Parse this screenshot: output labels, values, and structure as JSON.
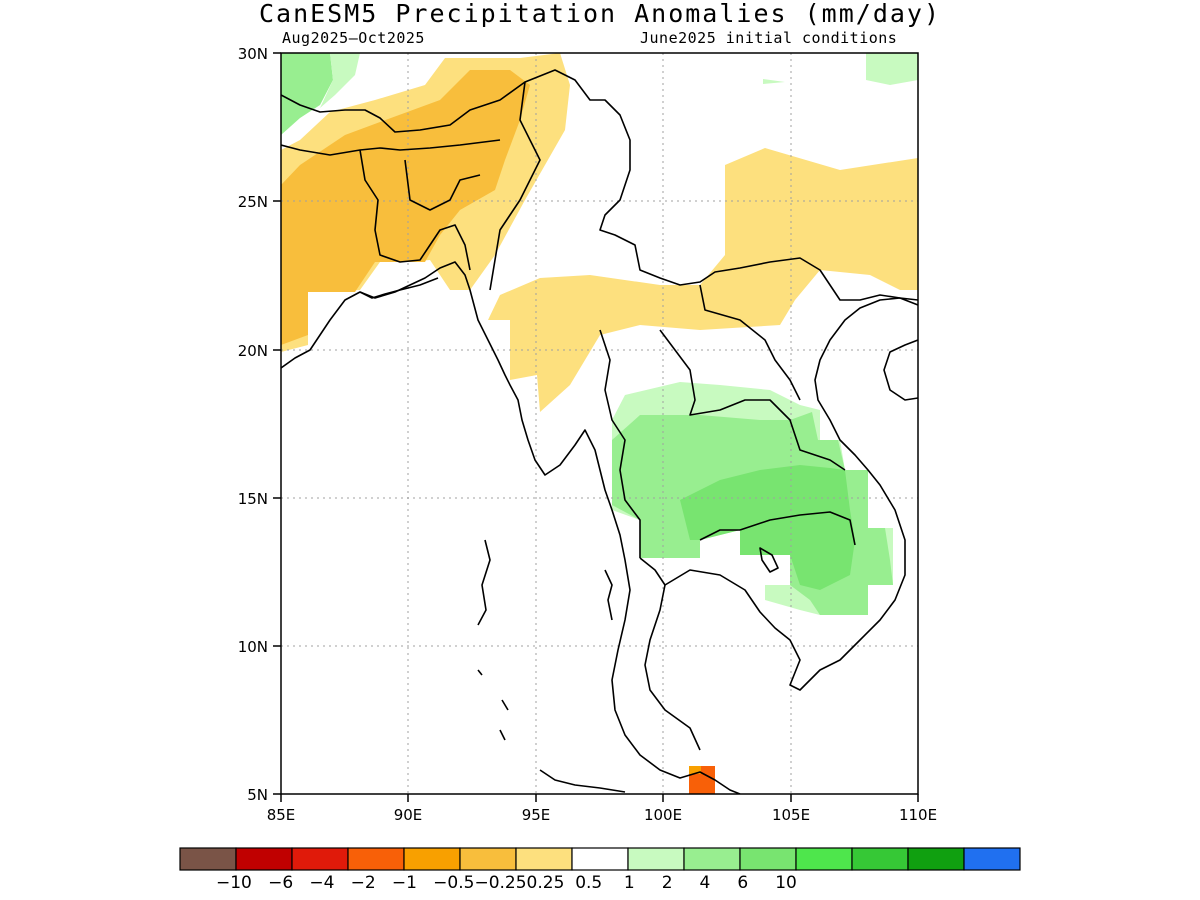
{
  "title": "CanESM5 Precipitation Anomalies (mm/day)",
  "subtitle_left": "Aug2025–Oct2025",
  "subtitle_right": "June2025 initial conditions",
  "map": {
    "lon_range": [
      85,
      110
    ],
    "lat_range": [
      5,
      30
    ],
    "x_ticks": [
      {
        "value": 85,
        "label": "85E"
      },
      {
        "value": 90,
        "label": "90E"
      },
      {
        "value": 95,
        "label": "95E"
      },
      {
        "value": 100,
        "label": "100E"
      },
      {
        "value": 105,
        "label": "105E"
      },
      {
        "value": 110,
        "label": "110E"
      }
    ],
    "y_ticks": [
      {
        "value": 30,
        "label": "30N"
      },
      {
        "value": 25,
        "label": "25N"
      },
      {
        "value": 20,
        "label": "20N"
      },
      {
        "value": 15,
        "label": "15N"
      },
      {
        "value": 10,
        "label": "10N"
      },
      {
        "value": 5,
        "label": "5N"
      }
    ],
    "grid": "dotted"
  },
  "colorbar": {
    "colors": [
      "#7a5447",
      "#c00000",
      "#e01a0a",
      "#f86008",
      "#f8a000",
      "#f8be3c",
      "#fde07e",
      "#ffffff",
      "#c8fac0",
      "#98ee90",
      "#78e470",
      "#4ee64c",
      "#36c836",
      "#10a010",
      "#2070f0"
    ],
    "labels": [
      "-10",
      "-6",
      "-4",
      "-2",
      "-1",
      "-0.5",
      "-0.25",
      "0.25",
      "0.5",
      "1",
      "2",
      "4",
      "6",
      "10"
    ]
  },
  "legend_text": "−10   −6   −4   −2   −1   −0.5−0.250.25  0.5    1     2     4     6     10"
}
